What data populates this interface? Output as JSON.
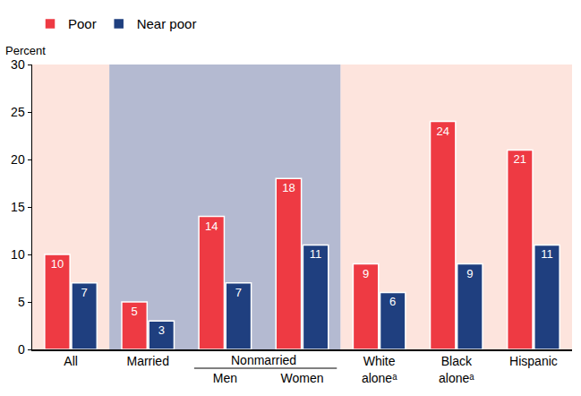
{
  "chart_data": {
    "type": "bar",
    "ylabel": "Percent",
    "categories": [
      "All",
      "Married",
      "Men",
      "Women",
      "White aloneᵃ",
      "Black aloneᵃ",
      "Hispanic"
    ],
    "series": [
      {
        "name": "Poor",
        "color": "#ee3a43",
        "values": [
          10,
          5,
          14,
          18,
          9,
          24,
          21
        ]
      },
      {
        "name": "Near poor",
        "color": "#1f3f7f",
        "values": [
          7,
          3,
          7,
          11,
          6,
          9,
          11
        ]
      }
    ],
    "ylim": [
      0,
      30
    ],
    "yticks": [
      0,
      5,
      10,
      15,
      20,
      25,
      30
    ],
    "grid": false,
    "legend": "top-left",
    "data_labels": true,
    "annotations": [
      {
        "text": "Nonmarried",
        "categories": [
          "Men",
          "Women"
        ]
      }
    ]
  }
}
